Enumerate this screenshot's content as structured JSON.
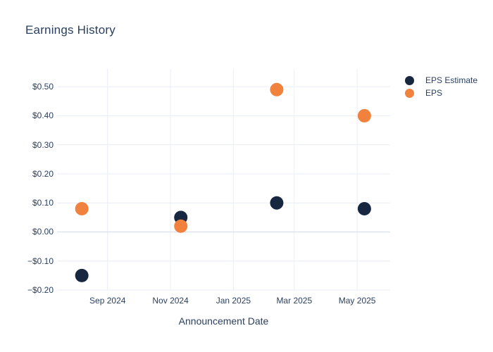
{
  "chart_data": {
    "type": "scatter",
    "title": "Earnings History",
    "xlabel": "Announcement Date",
    "ylabel": "",
    "grid": true,
    "legend_position": "right-top",
    "text_color": "#2a3f5f",
    "grid_color": "#e9eef6",
    "zeroline_color": "#dce3ef",
    "plot_background": "#ffffff",
    "x_range": [
      "2024-07-14",
      "2025-06-02"
    ],
    "ylim": [
      -0.2,
      0.561
    ],
    "x_ticks": [
      {
        "date": "2024-09-01",
        "label": "Sep 2024"
      },
      {
        "date": "2024-11-01",
        "label": "Nov 2024"
      },
      {
        "date": "2025-01-01",
        "label": "Jan 2025"
      },
      {
        "date": "2025-03-01",
        "label": "Mar 2025"
      },
      {
        "date": "2025-05-01",
        "label": "May 2025"
      }
    ],
    "y_ticks": [
      {
        "value": -0.2,
        "label": "−$0.20"
      },
      {
        "value": -0.1,
        "label": "−$0.10"
      },
      {
        "value": 0.0,
        "label": "$0.00"
      },
      {
        "value": 0.1,
        "label": "$0.10"
      },
      {
        "value": 0.2,
        "label": "$0.20"
      },
      {
        "value": 0.3,
        "label": "$0.30"
      },
      {
        "value": 0.4,
        "label": "$0.40"
      },
      {
        "value": 0.5,
        "label": "$0.50"
      }
    ],
    "marker_diameter": 19,
    "series": [
      {
        "name": "EPS Estimate",
        "color": "#16273f",
        "points": [
          {
            "date": "2024-08-07",
            "value": -0.15
          },
          {
            "date": "2024-11-11",
            "value": 0.05
          },
          {
            "date": "2025-02-12",
            "value": 0.1
          },
          {
            "date": "2025-05-08",
            "value": 0.08
          }
        ]
      },
      {
        "name": "EPS",
        "color": "#f0823e",
        "points": [
          {
            "date": "2024-08-07",
            "value": 0.08
          },
          {
            "date": "2024-11-11",
            "value": 0.02
          },
          {
            "date": "2025-02-12",
            "value": 0.49
          },
          {
            "date": "2025-05-08",
            "value": 0.4
          }
        ]
      }
    ]
  }
}
